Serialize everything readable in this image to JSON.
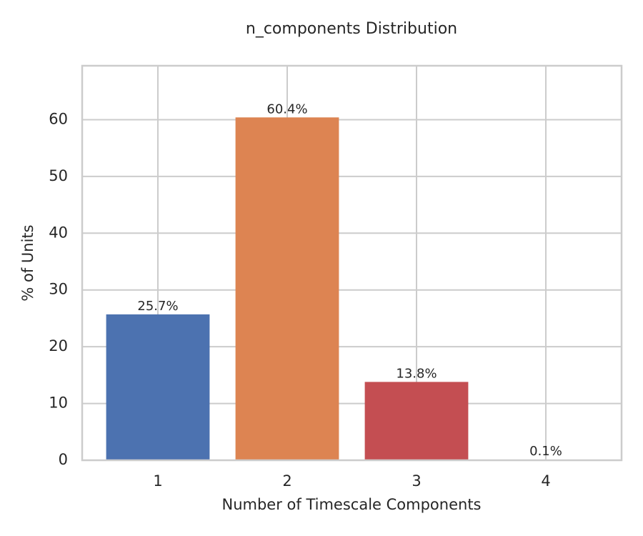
{
  "chart_data": {
    "type": "bar",
    "title": "n_components Distribution",
    "x_label": "Number of Timescale Components",
    "y_label": "% of Units",
    "categories": [
      "1",
      "2",
      "3",
      "4"
    ],
    "values": [
      25.7,
      60.4,
      13.8,
      0.1
    ],
    "value_labels": [
      "25.7%",
      "60.4%",
      "13.8%",
      "0.1%"
    ],
    "colors": [
      "#4c72b0",
      "#dd8452",
      "#c44e52",
      "#55a868"
    ],
    "ylim": [
      0,
      69.5
    ],
    "yticks": [
      0,
      10,
      20,
      30,
      40,
      50,
      60
    ],
    "grid": true
  }
}
